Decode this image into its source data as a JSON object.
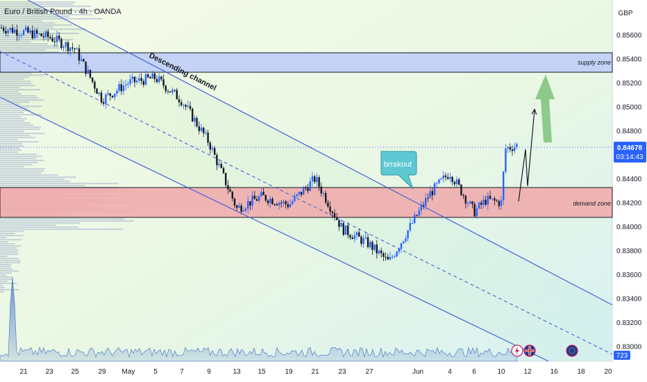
{
  "header": {
    "title": "Euro / British Pound · 4h · OANDA"
  },
  "currency": "GBP",
  "price_badge": {
    "price": "0.84678",
    "countdown": "03:14:43"
  },
  "volume_badge": "723",
  "annotations": {
    "channel": "Descending channel",
    "supply": "supply zone",
    "demand": "demand zone",
    "callout": "brrakout"
  },
  "icons": [
    "lightning-event-icon",
    "uk-flag-event-icon",
    "eu-flag-event-icon"
  ],
  "colors": {
    "up": "#2962ff",
    "down": "#131722",
    "channel": "#4361d8",
    "supply_fill": "#c3d2f5",
    "demand_fill": "#f0a8aa",
    "arrow": "#7cc27a",
    "callout": "#5ec8d2",
    "badge": "#2962ff"
  },
  "chart_data": {
    "type": "candlestick",
    "instrument": "Euro / British Pound",
    "timeframe": "4h",
    "source": "OANDA",
    "y_axis": {
      "unit": "GBP",
      "ticks": [
        "0.85600",
        "0.85400",
        "0.85200",
        "0.85000",
        "0.84800",
        "0.84600",
        "0.84400",
        "0.84200",
        "0.84000",
        "0.83800",
        "0.83600",
        "0.83400",
        "0.83200",
        "0.83000"
      ],
      "range": [
        0.8288,
        0.8573
      ]
    },
    "x_axis": {
      "ticks": [
        "21",
        "23",
        "25",
        "29",
        "May",
        "5",
        "7",
        "9",
        "13",
        "15",
        "19",
        "21",
        "23",
        "27",
        "Jun",
        "4",
        "6",
        "10",
        "12",
        "16",
        "18",
        "20"
      ]
    },
    "last_price": 0.84678,
    "supply_zone": [
      0.8531,
      0.8546
    ],
    "demand_zone": [
      0.8409,
      0.8435
    ],
    "price_path_approx": [
      {
        "date": "Apr 20",
        "price": 0.8566
      },
      {
        "date": "Apr 23",
        "price": 0.8558
      },
      {
        "date": "Apr 25",
        "price": 0.8548
      },
      {
        "date": "Apr 29",
        "price": 0.8506
      },
      {
        "date": "May 2",
        "price": 0.852
      },
      {
        "date": "May 5",
        "price": 0.8524
      },
      {
        "date": "May 7",
        "price": 0.8505
      },
      {
        "date": "May 9",
        "price": 0.847
      },
      {
        "date": "May 13",
        "price": 0.8415
      },
      {
        "date": "May 15",
        "price": 0.8425
      },
      {
        "date": "May 19",
        "price": 0.8418
      },
      {
        "date": "May 21",
        "price": 0.844
      },
      {
        "date": "May 23",
        "price": 0.8398
      },
      {
        "date": "May 27",
        "price": 0.8385
      },
      {
        "date": "May 29",
        "price": 0.837
      },
      {
        "date": "May 31",
        "price": 0.8428
      },
      {
        "date": "Jun 3",
        "price": 0.8445
      },
      {
        "date": "Jun 4",
        "price": 0.8412
      },
      {
        "date": "Jun 6",
        "price": 0.8422
      },
      {
        "date": "Jun 7",
        "price": 0.842
      },
      {
        "date": "Jun 10",
        "price": 0.8465
      },
      {
        "date": "Jun 11",
        "price": 0.84678
      }
    ]
  }
}
